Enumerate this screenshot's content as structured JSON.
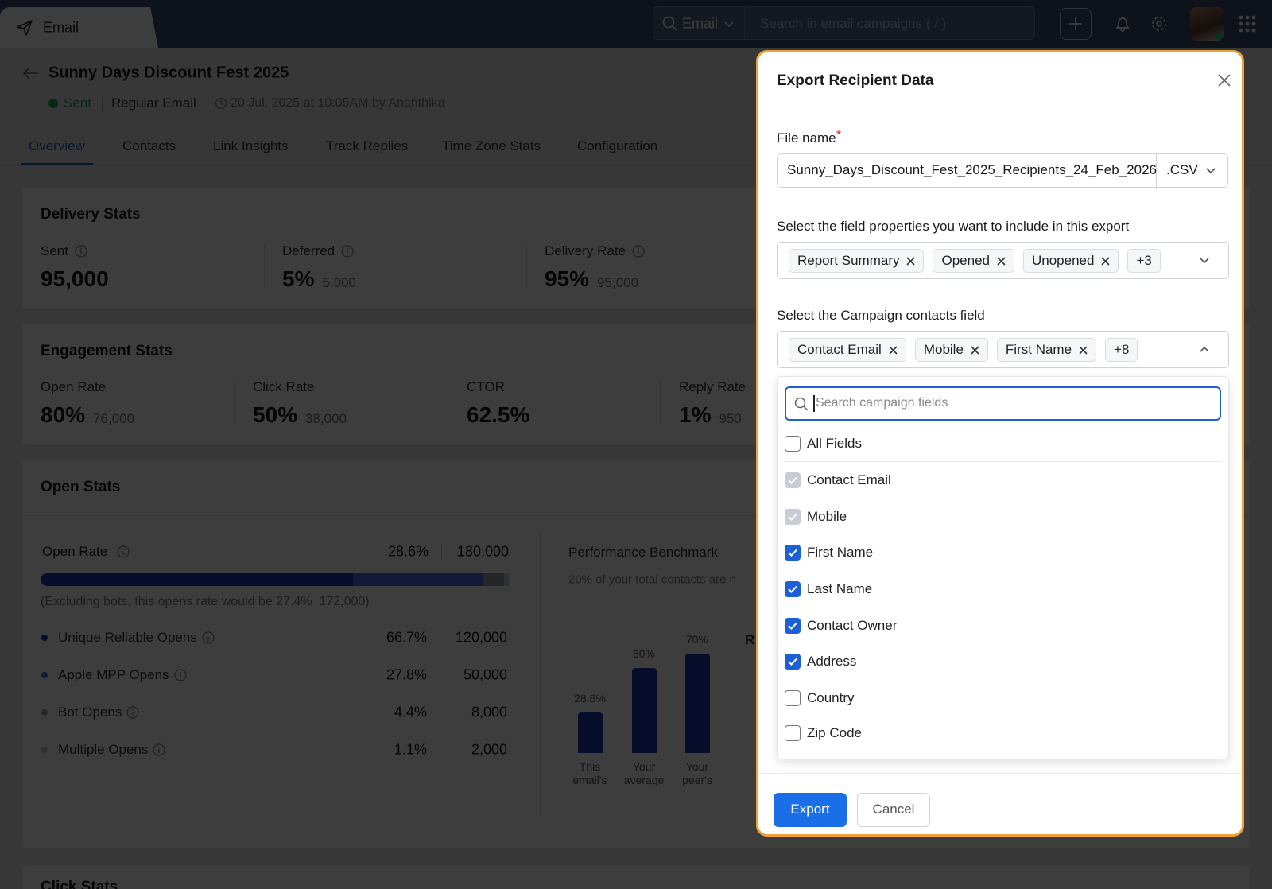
{
  "topbar": {
    "app": "Email",
    "search_scope": "Email",
    "search_placeholder": "Search in email campaigns ( / )"
  },
  "campaign": {
    "title": "Sunny Days Discount Fest 2025",
    "status": "Sent",
    "type": "Regular Email",
    "sent_info": "20 Jul, 2025 at 10:05AM by Ananthika"
  },
  "tabs": [
    "Overview",
    "Contacts",
    "Link Insights",
    "Track Replies",
    "Time Zone Stats",
    "Configuration"
  ],
  "active_tab": 0,
  "delivery_stats": {
    "title": "Delivery Stats",
    "items": [
      {
        "label": "Sent",
        "value": "95,000"
      },
      {
        "label": "Deferred",
        "value": "5%",
        "count": "5,000"
      },
      {
        "label": "Delivery Rate",
        "value": "95%",
        "count": "95,000"
      }
    ]
  },
  "engagement_stats": {
    "title": "Engagement Stats",
    "items": [
      {
        "label": "Open Rate",
        "value": "80%",
        "count": "76,000"
      },
      {
        "label": "Click Rate",
        "value": "50%",
        "count": "38,000"
      },
      {
        "label": "CTOR",
        "value": "62.5%"
      },
      {
        "label": "Reply Rate",
        "value": "1%",
        "count": "950"
      }
    ]
  },
  "open_stats": {
    "title": "Open Stats",
    "open_rate": {
      "label": "Open Rate",
      "percent": "28.6%",
      "count": "180,000"
    },
    "note": "(Excluding bots, this opens rate would be 27.4%  172,000)",
    "breakdown": {
      "labels": [
        "Unique Reliable Opens",
        "Apple MPP Opens",
        "Bot Opens",
        "Multiple Opens"
      ],
      "values": [
        66.7,
        27.8,
        4.4,
        1.1
      ],
      "value_labels": [
        "66.7%",
        "27.8%",
        "4.4%",
        "1.1%"
      ],
      "counts": [
        "120,000",
        "50,000",
        "8,000",
        "2,000"
      ],
      "colors": [
        "#1a3bb8",
        "#4a73e6",
        "#9aa0ab",
        "#c9cdd3"
      ]
    }
  },
  "benchmark": {
    "title": "Performance Benchmark",
    "subtitle": "20% of your total contacts are n",
    "categories": [
      "This email's",
      "Your average",
      "Your peer's"
    ],
    "values": [
      28.6,
      60,
      70
    ],
    "value_labels": [
      "28.6%",
      "60%",
      "70%"
    ],
    "color": "#1a3bb8",
    "clipped_label": "R"
  },
  "click_stats": {
    "title": "Click Stats"
  },
  "modal": {
    "title": "Export Recipient Data",
    "file_label": "File name",
    "required_mark": "*",
    "file_name": "Sunny_Days_Discount_Fest_2025_Recipients_24_Feb_2026",
    "file_ext": ".CSV",
    "props_label": "Select the field properties you want to include in this export",
    "props_chips": [
      "Report Summary",
      "Opened",
      "Unopened"
    ],
    "props_more": "+3",
    "contacts_label": "Select the Campaign contacts field",
    "contacts_chips": [
      "Contact Email",
      "Mobile",
      "First Name"
    ],
    "contacts_more": "+8",
    "search_placeholder": "Search campaign fields",
    "options": [
      {
        "label": "All Fields",
        "checked": false
      },
      {
        "label": "Contact Email",
        "checked": true,
        "disabled": true
      },
      {
        "label": "Mobile",
        "checked": true,
        "disabled": true
      },
      {
        "label": "First Name",
        "checked": true
      },
      {
        "label": "Last Name",
        "checked": true
      },
      {
        "label": "Contact Owner",
        "checked": true
      },
      {
        "label": "Address",
        "checked": true
      },
      {
        "label": "Country",
        "checked": false
      },
      {
        "label": "Zip Code",
        "checked": false
      }
    ],
    "export": "Export",
    "cancel": "Cancel"
  }
}
